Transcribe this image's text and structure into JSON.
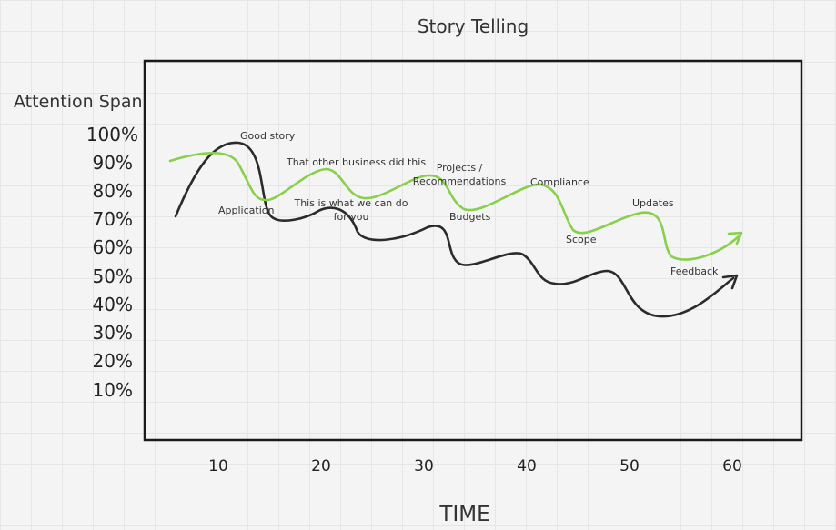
{
  "diagram": {
    "title": "Story Telling",
    "y_axis_label": "Attention Span",
    "x_axis_label": "TIME",
    "y_ticks": [
      "100%",
      "90%",
      "80%",
      "70%",
      "60%",
      "50%",
      "40%",
      "30%",
      "20%",
      "10%"
    ],
    "x_ticks": [
      "10",
      "20",
      "30",
      "40",
      "50",
      "60"
    ],
    "annotations": {
      "good_story": "Good story",
      "other_business": "That other business did this",
      "projects_1": "Projects /",
      "projects_2": "Recommendations",
      "compliance": "Compliance",
      "updates": "Updates",
      "application": "Application",
      "what_we_can_do_1": "This is what we can do",
      "what_we_can_do_2": "for you",
      "budgets": "Budgets",
      "scope": "Scope",
      "feedback": "Feedback"
    },
    "colors": {
      "green_curve": "#88d04b",
      "dark_curve": "#2b2b2b",
      "frame": "#1a1a1a"
    }
  }
}
